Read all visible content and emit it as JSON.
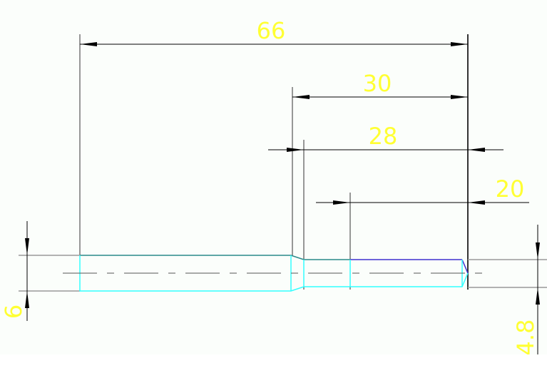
{
  "drawing": {
    "background": "#fbfefb",
    "colors": {
      "dimension_text": "#ffff33",
      "outline_cyan": "#33ffff",
      "outline_teal": "#2a8a8a",
      "outline_blue": "#4030d0",
      "dimension_line": "#000000",
      "extension_line": "#808080"
    },
    "dimensions": {
      "overall_length": "66",
      "step_length": "30",
      "small_section_length": "28",
      "end_section_length": "20",
      "large_diameter": "6",
      "small_diameter": "4.8"
    }
  }
}
